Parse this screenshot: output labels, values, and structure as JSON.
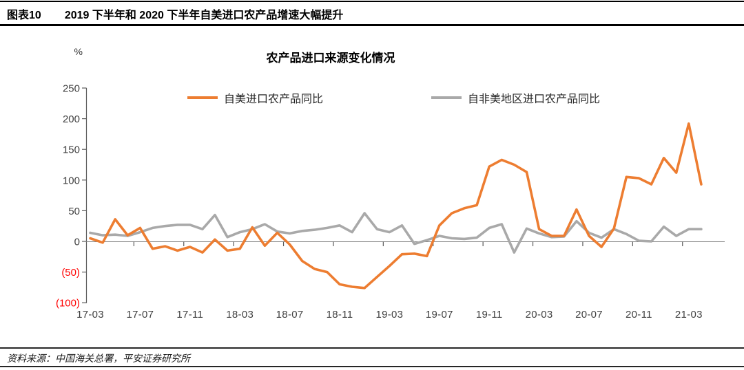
{
  "header": {
    "tag": "图表10",
    "title": "2019 下半年和 2020 下半年自美进口农产品增速大幅提升"
  },
  "chart": {
    "title": "农产品进口来源变化情况",
    "y_unit": "%"
  },
  "chart_data": {
    "type": "line",
    "title": "农产品进口来源变化情况",
    "ylabel": "%",
    "ylim": [
      -100,
      250
    ],
    "y_ticks": [
      250,
      200,
      150,
      100,
      50,
      0,
      -50,
      -100
    ],
    "negative_tick_style": "red-parentheses",
    "grid": false,
    "legend_position": "top",
    "x": [
      "17-03",
      "17-04",
      "17-05",
      "17-06",
      "17-07",
      "17-08",
      "17-09",
      "17-10",
      "17-11",
      "17-12",
      "18-01",
      "18-02",
      "18-03",
      "18-04",
      "18-05",
      "18-06",
      "18-07",
      "18-08",
      "18-09",
      "18-10",
      "18-11",
      "18-12",
      "19-01",
      "19-02",
      "19-03",
      "19-04",
      "19-05",
      "19-06",
      "19-07",
      "19-08",
      "19-09",
      "19-10",
      "19-11",
      "19-12",
      "20-01",
      "20-02",
      "20-03",
      "20-04",
      "20-05",
      "20-06",
      "20-07",
      "20-08",
      "20-09",
      "20-10",
      "20-11",
      "20-12",
      "21-01",
      "21-02",
      "21-03",
      "21-04"
    ],
    "x_tick_labels": [
      "17-03",
      "17-07",
      "17-11",
      "18-03",
      "18-07",
      "18-11",
      "19-03",
      "19-07",
      "19-11",
      "20-03",
      "20-07",
      "20-11",
      "21-03"
    ],
    "series": [
      {
        "name": "自美进口农产品同比",
        "color": "#ED7D31",
        "values": [
          5,
          -2,
          36,
          10,
          22,
          -12,
          -8,
          -15,
          -9,
          -18,
          3,
          -15,
          -12,
          23,
          -7,
          14,
          -5,
          -32,
          -45,
          -50,
          -70,
          -74,
          -76,
          -58,
          -40,
          -21,
          -20,
          -24,
          26,
          46,
          54,
          59,
          122,
          133,
          125,
          113,
          20,
          9,
          9,
          52,
          9,
          -9,
          21,
          105,
          103,
          93,
          136,
          112,
          192,
          93
        ]
      },
      {
        "name": "自非美地区进口农产品同比",
        "color": "#A9A9A9",
        "values": [
          14,
          10,
          11,
          9,
          15,
          22,
          25,
          27,
          27,
          20,
          43,
          7,
          15,
          20,
          28,
          16,
          13,
          17,
          19,
          22,
          26,
          15,
          46,
          20,
          15,
          26,
          -4,
          2,
          9,
          5,
          4,
          6,
          22,
          28,
          -18,
          21,
          13,
          7,
          8,
          33,
          14,
          6,
          20,
          12,
          1,
          0,
          24,
          9,
          20,
          20
        ]
      }
    ],
    "colors": {
      "axis": "#595959",
      "tick_text": "#404040",
      "negative_text": "#FF0000",
      "zero_line": "#808080"
    }
  },
  "footer": {
    "source": "资料来源：中国海关总署，平安证券研究所"
  }
}
